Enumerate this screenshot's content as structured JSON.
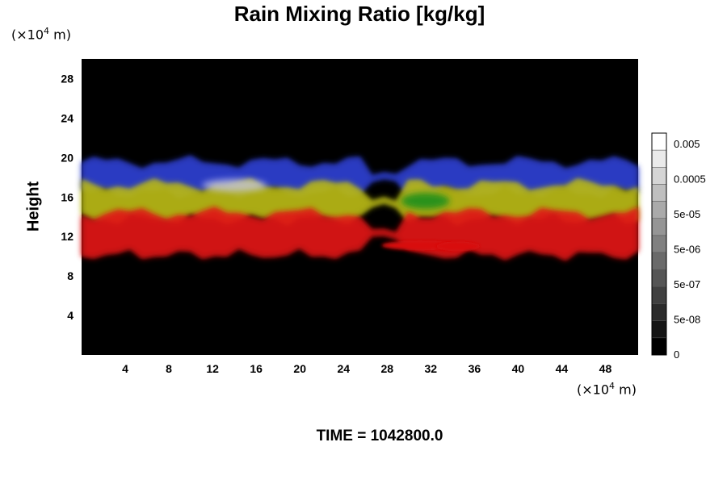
{
  "chart_data": {
    "type": "heatmap",
    "title": "Rain Mixing Ratio [kg/kg]",
    "ylabel": "Height",
    "y_unit": "10^4 m",
    "x_unit": "10^4 m",
    "y_unit_label": {
      "prefix": "(×10",
      "exp": "4",
      "suffix": " m)"
    },
    "x_unit_label": {
      "prefix": "(×10",
      "exp": "4",
      "suffix": " m)"
    },
    "xlim": [
      0,
      51
    ],
    "ylim": [
      0,
      30
    ],
    "x_ticks": [
      4,
      8,
      12,
      16,
      20,
      24,
      28,
      32,
      36,
      40,
      44,
      48
    ],
    "y_ticks": [
      4,
      8,
      12,
      16,
      20,
      24,
      28
    ],
    "colorbar": {
      "tick_labels": [
        "0.005",
        "0.0005",
        "5e-05",
        "5e-06",
        "5e-07",
        "5e-08",
        "0"
      ],
      "levels": 13
    },
    "bands": [
      {
        "name": "blue",
        "color": "#2f3fd0",
        "y_low": 16.5,
        "y_high": 19.5
      },
      {
        "name": "yellow",
        "color": "#b8b818",
        "y_low": 13.8,
        "y_high": 17.2
      },
      {
        "name": "red",
        "color": "#e01515",
        "y_low": 10.2,
        "y_high": 14.3
      }
    ]
  },
  "time_label": "TIME = ",
  "time_value": "1042800.0"
}
